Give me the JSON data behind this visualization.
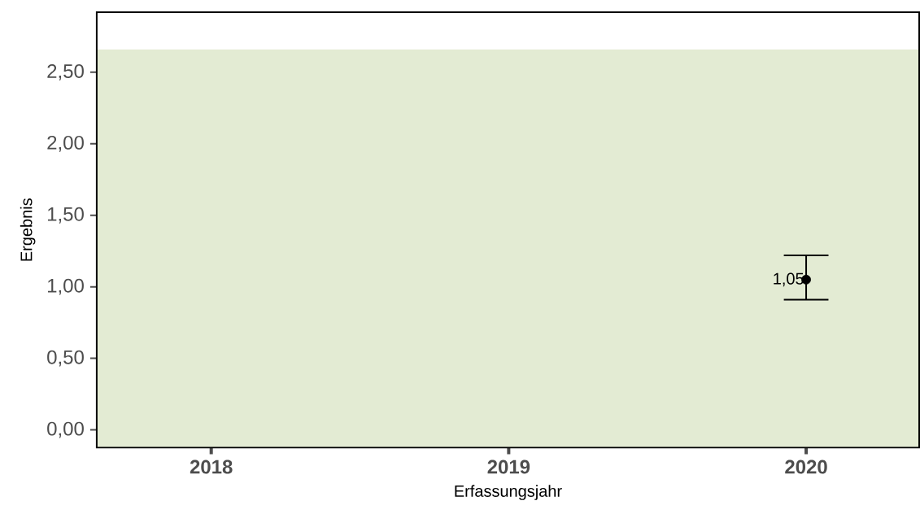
{
  "chart_data": {
    "type": "scatter",
    "categories": [
      "2018",
      "2019",
      "2020"
    ],
    "values": [
      null,
      null,
      1.05
    ],
    "errors": [
      null,
      null,
      [
        0.91,
        1.22
      ]
    ],
    "value_labels": [
      null,
      null,
      "1,05"
    ],
    "color": "#000000",
    "xlabel": "Erfassungsjahr",
    "ylabel": "Ergebnis",
    "ylim": [
      -0.125,
      2.92
    ],
    "yticks": [
      {
        "value": 0,
        "label": "0,00"
      },
      {
        "value": 0.5,
        "label": "0,50"
      },
      {
        "value": 1,
        "label": "1,00"
      },
      {
        "value": 1.5,
        "label": "1,50"
      },
      {
        "value": 2,
        "label": "2,00"
      },
      {
        "value": 2.5,
        "label": "2,50"
      }
    ],
    "bands": [
      {
        "axis": "y",
        "from": -0.125,
        "to": 2.66,
        "color": "#e3ebd3"
      }
    ],
    "grid": false
  }
}
